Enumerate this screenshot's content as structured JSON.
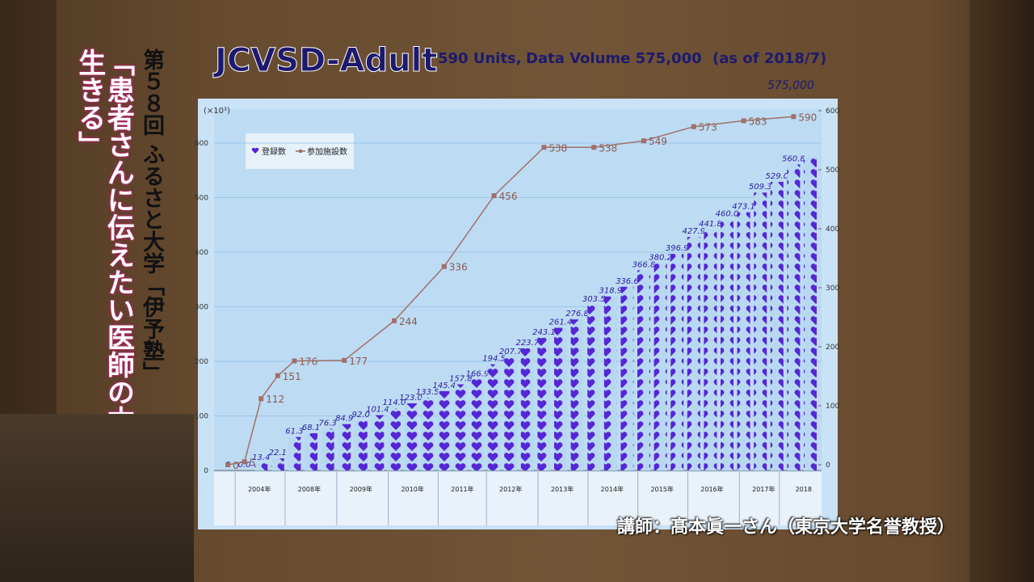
{
  "slide": {
    "title": "JCVSD-Adult",
    "units": "590 Units,",
    "volume": "Data Volume 575,000",
    "as_of": "(as of 2018/7)",
    "total_label": "575,000"
  },
  "overlay": {
    "series_title": "第５８回 ふるさと大学「伊予塾」",
    "lecture_title": "「患者さんに伝えたい医師の本心 -ともに生きる」",
    "speaker": "講師：髙本眞一さん（東京大学名誉教授）"
  },
  "chart_data": {
    "type": "bar",
    "y_unit": "(×10³)",
    "categories": [
      null,
      null,
      null,
      null,
      null,
      null,
      null,
      null,
      null,
      null,
      null,
      null,
      null,
      null,
      null,
      null,
      null,
      null,
      null,
      null,
      null,
      null,
      null,
      null,
      null,
      null,
      null,
      null,
      null,
      null,
      null,
      null,
      null,
      null,
      null,
      null
    ],
    "period_labels": [
      "2004年",
      "2008年",
      "2009年",
      "2010年",
      "2011年",
      "2012年",
      "2013年",
      "2014年",
      "2015年",
      "2016年",
      "2017年",
      "2018"
    ],
    "series": [
      {
        "name": "登録数",
        "color": "#5526d6",
        "values": [
          0,
          0,
          13.4,
          22.1,
          61.3,
          68.1,
          76.3,
          84.9,
          92,
          101.4,
          114,
          123,
          133.5,
          145.4,
          157.8,
          166.9,
          194.5,
          207.7,
          223.7,
          243.1,
          261.4,
          276.8,
          303.5,
          318.9,
          336.6,
          366.8,
          380.2,
          396.9,
          427.9,
          441.8,
          460,
          473.1,
          509.3,
          529,
          560.8,
          575
        ],
        "value_labels": [
          "0",
          "0.0",
          "13.4",
          "22.1",
          "61.3",
          "68.1",
          "76.3",
          "84.9",
          "92.0",
          "101.4",
          "114.0",
          "123.0",
          "133.5",
          "145.4",
          "157.8",
          "166.9",
          "194.5",
          "207.7",
          "223.7",
          "243.1",
          "261.4",
          "276.8",
          "303.5",
          "318.9",
          "336.6",
          "366.8",
          "380.2",
          "396.9",
          "427.9",
          "441.8",
          "460.0",
          "473.1",
          "509.3",
          "529.0",
          "560.8",
          null
        ]
      },
      {
        "name": "参加施設数",
        "color": "#a0706a",
        "axis": "y2",
        "values": [
          0,
          5,
          112,
          151,
          176,
          null,
          null,
          177,
          null,
          null,
          244,
          null,
          null,
          336,
          null,
          null,
          456,
          null,
          null,
          538,
          null,
          null,
          538,
          null,
          null,
          549,
          null,
          null,
          573,
          null,
          null,
          583,
          null,
          null,
          590,
          null
        ]
      }
    ],
    "ylim": [
      0,
      600
    ],
    "yticks": [
      0,
      100,
      200,
      300,
      400,
      500,
      600
    ],
    "y2lim": [
      0,
      600
    ],
    "y2ticks": [
      0,
      100,
      200,
      300,
      400,
      500,
      600
    ],
    "grid": true
  }
}
